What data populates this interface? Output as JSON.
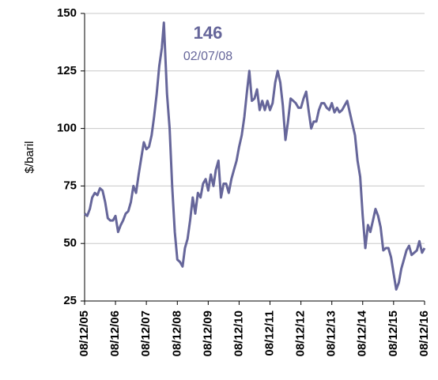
{
  "chart_data": {
    "type": "line",
    "ylabel": "$/baril",
    "annotations": [
      "146",
      "02/07/08"
    ],
    "xlim": [
      "08/12/05",
      "08/12/16"
    ],
    "xticks": [
      "08/12/05",
      "08/12/06",
      "08/12/07",
      "08/12/08",
      "08/12/09",
      "08/12/10",
      "08/12/11",
      "08/12/12",
      "08/12/13",
      "08/12/14",
      "08/12/15",
      "08/12/16"
    ],
    "ylim": [
      25,
      150
    ],
    "yticks": [
      25,
      50,
      75,
      100,
      125,
      150
    ],
    "grid": true,
    "x": [
      "08/12/05",
      "08/01/06",
      "08/02/06",
      "08/03/06",
      "08/04/06",
      "08/05/06",
      "08/06/06",
      "08/07/06",
      "08/08/06",
      "08/09/06",
      "08/10/06",
      "08/11/06",
      "08/12/06",
      "08/01/07",
      "08/02/07",
      "08/03/07",
      "08/04/07",
      "08/05/07",
      "08/06/07",
      "08/07/07",
      "08/08/07",
      "08/09/07",
      "08/10/07",
      "08/11/07",
      "08/12/07",
      "08/01/08",
      "08/02/08",
      "08/03/08",
      "08/04/08",
      "08/05/08",
      "08/06/08",
      "02/07/08",
      "08/08/08",
      "08/09/08",
      "08/10/08",
      "08/11/08",
      "08/12/08",
      "08/01/09",
      "08/02/09",
      "08/03/09",
      "08/04/09",
      "08/05/09",
      "08/06/09",
      "08/07/09",
      "08/08/09",
      "08/09/09",
      "08/10/09",
      "08/11/09",
      "08/12/09",
      "08/01/10",
      "08/02/10",
      "08/03/10",
      "08/04/10",
      "08/05/10",
      "08/06/10",
      "08/07/10",
      "08/08/10",
      "08/09/10",
      "08/10/10",
      "08/11/10",
      "08/12/10",
      "08/01/11",
      "08/02/11",
      "08/03/11",
      "08/04/11",
      "08/05/11",
      "08/06/11",
      "08/07/11",
      "08/08/11",
      "08/09/11",
      "08/10/11",
      "08/11/11",
      "08/12/11",
      "08/01/12",
      "08/02/12",
      "08/03/12",
      "08/04/12",
      "08/05/12",
      "08/06/12",
      "08/07/12",
      "08/08/12",
      "08/09/12",
      "08/10/12",
      "08/11/12",
      "08/12/12",
      "08/01/13",
      "08/02/13",
      "08/03/13",
      "08/04/13",
      "08/05/13",
      "08/06/13",
      "08/07/13",
      "08/08/13",
      "08/09/13",
      "08/10/13",
      "08/11/13",
      "08/12/13",
      "08/01/14",
      "08/02/14",
      "08/03/14",
      "08/04/14",
      "08/05/14",
      "08/06/14",
      "08/07/14",
      "08/08/14",
      "08/09/14",
      "08/10/14",
      "08/11/14",
      "08/12/14",
      "08/01/15",
      "08/02/15",
      "08/03/15",
      "08/04/15",
      "08/05/15",
      "08/06/15",
      "08/07/15",
      "08/08/15",
      "08/09/15",
      "08/10/15",
      "08/11/15",
      "08/12/15",
      "08/01/16",
      "08/02/16",
      "08/03/16",
      "08/04/16",
      "08/05/16",
      "08/06/16",
      "08/07/16",
      "08/08/16",
      "08/09/16",
      "08/10/16",
      "08/11/16",
      "08/12/16"
    ],
    "series": [
      {
        "color": "#66669a",
        "values": [
          63,
          62,
          65,
          70,
          72,
          71,
          74,
          73,
          68,
          61,
          60,
          60,
          62,
          55,
          58,
          60,
          63,
          64,
          68,
          75,
          72,
          80,
          87,
          94,
          91,
          92,
          97,
          105,
          115,
          127,
          135,
          146,
          115,
          100,
          75,
          55,
          43,
          42,
          40,
          48,
          52,
          60,
          70,
          63,
          72,
          70,
          76,
          78,
          73,
          80,
          75,
          82,
          86,
          70,
          76,
          76,
          72,
          78,
          82,
          86,
          92,
          97,
          105,
          115,
          125,
          112,
          113,
          117,
          108,
          112,
          108,
          112,
          108,
          111,
          120,
          125,
          120,
          110,
          95,
          103,
          113,
          112,
          111,
          109,
          109,
          113,
          116,
          108,
          100,
          103,
          103,
          108,
          111,
          111,
          109,
          108,
          111,
          107,
          109,
          107,
          108,
          110,
          112,
          107,
          102,
          97,
          86,
          79,
          62,
          48,
          58,
          55,
          60,
          65,
          62,
          57,
          47,
          48,
          48,
          44,
          37,
          30,
          33,
          39,
          43,
          47,
          49,
          45,
          46,
          47,
          51,
          46,
          48
        ]
      }
    ]
  }
}
